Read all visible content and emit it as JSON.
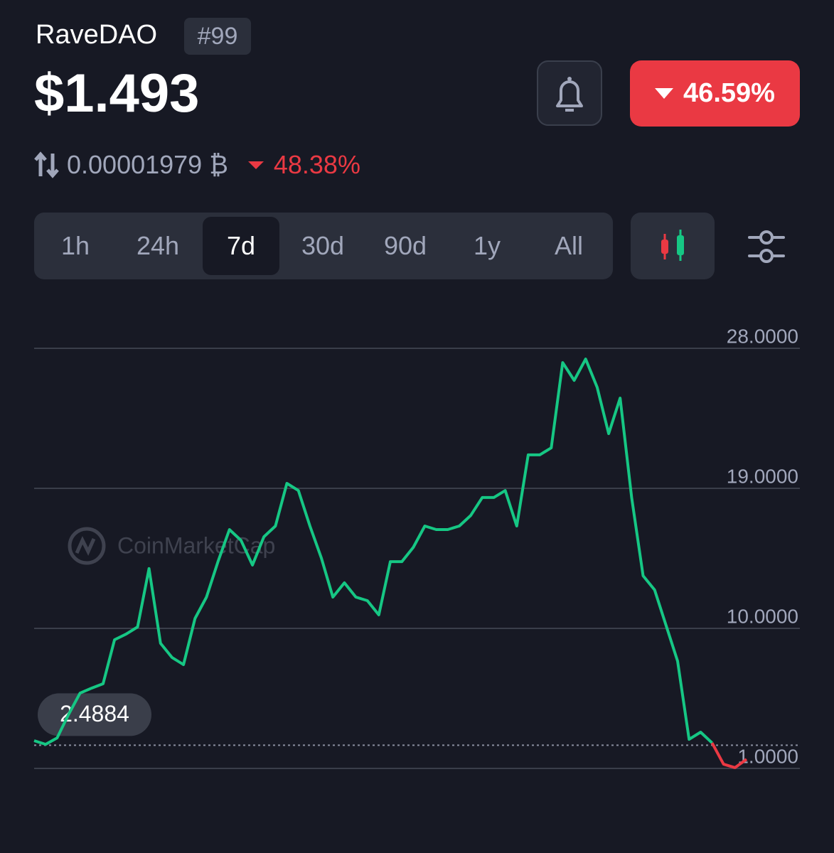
{
  "header": {
    "name": "RaveDAO",
    "rank": "#99",
    "price": "$1.493",
    "change": "46.59%",
    "btc_price": "0.00001979 ₿",
    "btc_change": "48.38%"
  },
  "tabs": [
    "1h",
    "24h",
    "7d",
    "30d",
    "90d",
    "1y",
    "All"
  ],
  "chart_data": {
    "type": "line",
    "watermark": "CoinMarketCap",
    "series": [
      {
        "color": "#16c784",
        "values": [
          2.78,
          2.55,
          2.96,
          4.47,
          5.84,
          6.16,
          6.44,
          9.27,
          9.63,
          10.09,
          13.84,
          9.04,
          8.13,
          7.67,
          10.64,
          12.01,
          14.29,
          16.35,
          15.66,
          14.07,
          15.89,
          16.58,
          19.32,
          18.86,
          16.58,
          14.52,
          12.01,
          12.93,
          12.01,
          11.78,
          10.87,
          14.29,
          14.29,
          15.21,
          16.58,
          16.35,
          16.35,
          16.58,
          17.26,
          18.41,
          18.41,
          18.86,
          16.58,
          21.15,
          21.15,
          21.6,
          27.08,
          25.94,
          27.31,
          25.49,
          22.52,
          24.8,
          18.41,
          13.38,
          12.47,
          10.18,
          7.9,
          2.87,
          3.33,
          2.64,
          null,
          null,
          null
        ]
      },
      {
        "color": "#ea3943",
        "values": [
          null,
          null,
          null,
          null,
          null,
          null,
          null,
          null,
          null,
          null,
          null,
          null,
          null,
          null,
          null,
          null,
          null,
          null,
          null,
          null,
          null,
          null,
          null,
          null,
          null,
          null,
          null,
          null,
          null,
          null,
          null,
          null,
          null,
          null,
          null,
          null,
          null,
          null,
          null,
          null,
          null,
          null,
          null,
          null,
          null,
          null,
          null,
          null,
          null,
          null,
          null,
          null,
          null,
          null,
          null,
          null,
          null,
          null,
          null,
          2.64,
          1.27,
          1.05,
          1.59
        ]
      }
    ],
    "reference": 2.4884,
    "ylim": [
      1,
      28
    ],
    "yticks": [
      {
        "value": 1,
        "label": "1.0000"
      },
      {
        "value": 10,
        "label": "10.0000"
      },
      {
        "value": 19,
        "label": "19.0000"
      },
      {
        "value": 28,
        "label": "28.0000"
      }
    ],
    "grid": true
  }
}
